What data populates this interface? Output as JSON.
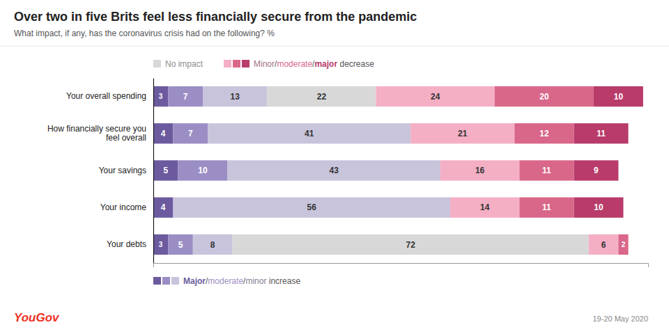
{
  "chart_data": {
    "type": "bar",
    "orientation": "horizontal",
    "stacked": true,
    "data_labels": true,
    "tick_labels": "y",
    "grid": false,
    "title": "Over two in five Brits feel less financially secure from the pandemic",
    "subtitle": "What impact, if any, has the coronavirus crisis had on the following? %",
    "categories": [
      "Your overall spending",
      "How financially secure you\nfeel overall",
      "Your savings",
      "Your income",
      "Your debts"
    ],
    "xlim": [
      0,
      100
    ],
    "series": [
      {
        "name": "Major",
        "color": "#6b5b9e",
        "values": [
          3,
          4,
          5,
          4,
          3
        ]
      },
      {
        "name": "moderate",
        "color": "#9b8ec4",
        "values": [
          7,
          7,
          10,
          0,
          5
        ]
      },
      {
        "name": "minor",
        "color": "#c8c4dc",
        "values": [
          13,
          41,
          43,
          56,
          8
        ]
      },
      {
        "name": "No impact",
        "color": "#d8d8d8",
        "values": [
          22,
          0,
          0,
          0,
          72
        ]
      },
      {
        "name": "Minor",
        "color": "#f4afc5",
        "values": [
          24,
          21,
          16,
          14,
          6
        ]
      },
      {
        "name": "moderate",
        "color": "#d9678a",
        "values": [
          20,
          12,
          11,
          11,
          2
        ]
      },
      {
        "name": "major",
        "color": "#b83b6a",
        "values": [
          10,
          11,
          9,
          10,
          0
        ]
      }
    ],
    "annotations": [
      {
        "text": "/"
      },
      {
        "text": " decrease"
      },
      {
        "text": " increase"
      },
      {
        "text": "YouGov",
        "color": "#ee3124"
      },
      {
        "text": "19-20 May 2020"
      }
    ]
  }
}
